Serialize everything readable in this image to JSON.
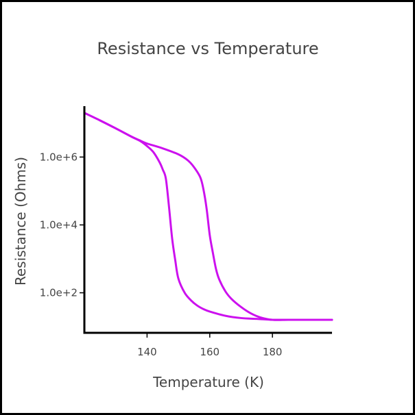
{
  "chart_data": {
    "type": "line",
    "title": "Resistance vs Temperature",
    "xlabel": "Temperature (K)",
    "ylabel": "Resistance (Ohms)",
    "xlim": [
      120,
      199
    ],
    "ylim_log10": [
      0.8,
      7.5
    ],
    "x_scale": "linear",
    "y_scale": "log",
    "grid": false,
    "line_color": "#cc11ee",
    "x_ticks": [
      {
        "value": 140,
        "label": "140"
      },
      {
        "value": 160,
        "label": "160"
      },
      {
        "value": 180,
        "label": "180"
      }
    ],
    "y_ticks": [
      {
        "value": 100,
        "label": "1.0e+2"
      },
      {
        "value": 10000,
        "label": "1.0e+4"
      },
      {
        "value": 1000000,
        "label": "1.0e+6"
      }
    ],
    "series": [
      {
        "x": [
          120,
          125,
          130,
          135,
          138,
          140,
          142,
          144,
          145,
          146,
          147,
          148,
          149,
          150,
          152,
          154,
          156,
          158,
          160,
          165,
          170,
          175,
          180,
          185,
          190,
          199
        ],
        "y": [
          20000000,
          12000000,
          7000000,
          4000000,
          2900000,
          2100000,
          1400000,
          700000,
          430000,
          230000,
          34000,
          4000,
          900,
          260,
          100,
          60,
          42,
          33,
          28,
          21,
          18,
          17,
          16,
          16,
          16,
          16
        ]
      },
      {
        "x": [
          120,
          125,
          130,
          135,
          138,
          140,
          145,
          150,
          153,
          155,
          157,
          158,
          159,
          160,
          161,
          162,
          163,
          165,
          167,
          170,
          173,
          176,
          180,
          185,
          190,
          199
        ],
        "y": [
          20000000,
          12000000,
          7000000,
          4000000,
          3000000,
          2500000,
          1800000,
          1200000,
          800000,
          500000,
          250000,
          110000,
          30000,
          5000,
          1500,
          500,
          250,
          110,
          65,
          38,
          25,
          19,
          16,
          16,
          16,
          16
        ]
      }
    ]
  }
}
